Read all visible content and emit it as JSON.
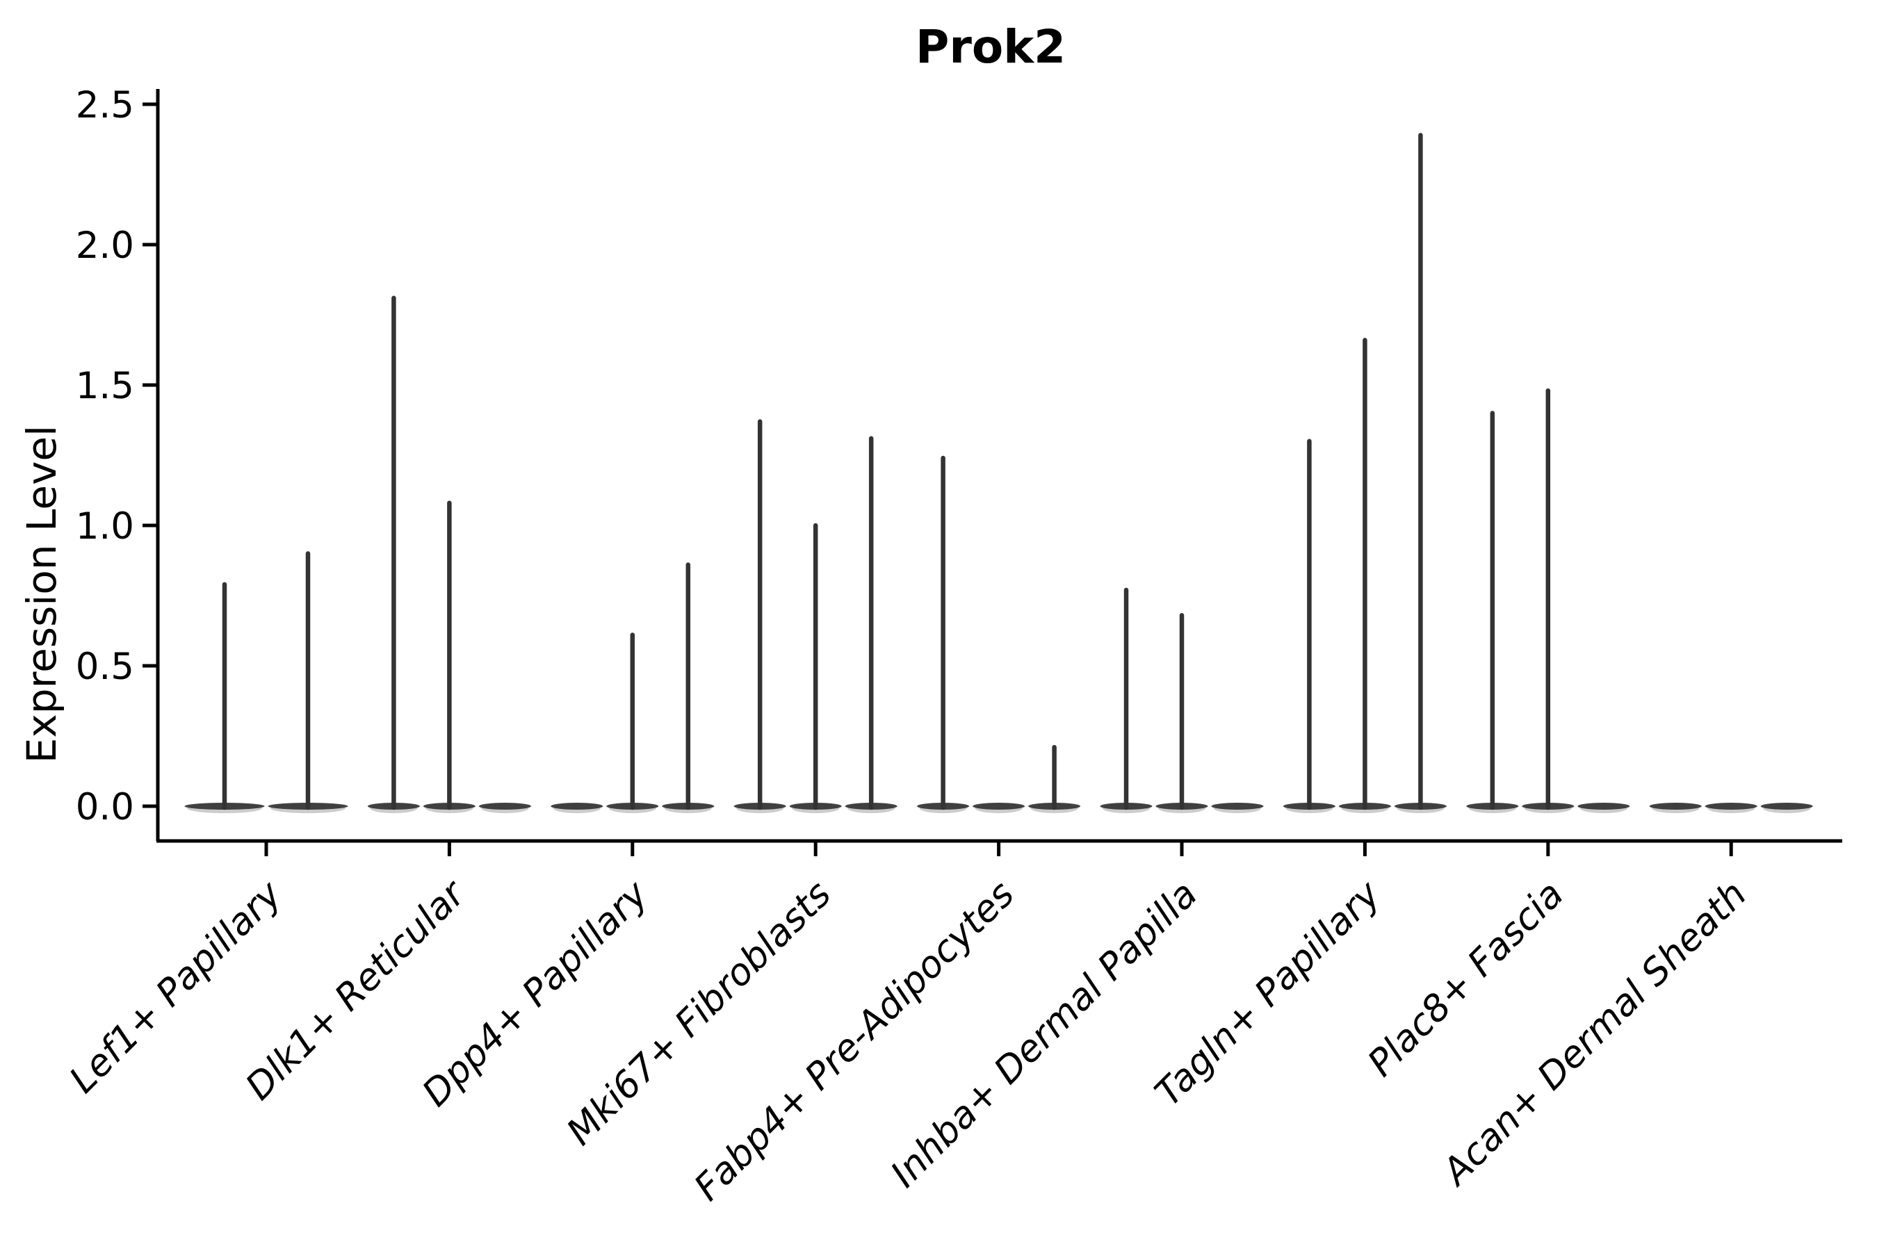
{
  "chart_data": {
    "type": "violin",
    "title": "Prok2",
    "xlabel": "",
    "ylabel": "Expression Level",
    "ylim": [
      0,
      2.5
    ],
    "yticks": [
      "0.0",
      "0.5",
      "1.0",
      "1.5",
      "2.0",
      "2.5"
    ],
    "grid": false,
    "legend_position": "none",
    "description": "Seurat-style violin plot of Prok2 expression; violins collapse to flat bases at 0 with thin spikes up to each group's maximum expression. Each category holds 2-3 sub-violins; 0 means a flat violin with no spike.",
    "categories": [
      "Lef1+ Papillary",
      "Dlk1+ Reticular",
      "Dpp4+ Papillary",
      "Mki67+ Fibroblasts",
      "Fabp4+ Pre-Adipocytes",
      "Inhba+ Dermal Papilla",
      "Tagln+ Papillary",
      "Plac8+ Fascia",
      "Acan+ Dermal Sheath"
    ],
    "groups": [
      {
        "category": "Lef1+ Papillary",
        "violin_maxima": [
          0.79,
          0.9
        ]
      },
      {
        "category": "Dlk1+ Reticular",
        "violin_maxima": [
          1.81,
          1.08,
          0
        ]
      },
      {
        "category": "Dpp4+ Papillary",
        "violin_maxima": [
          0,
          0.61,
          0.86
        ]
      },
      {
        "category": "Mki67+ Fibroblasts",
        "violin_maxima": [
          1.37,
          1.0,
          1.31
        ]
      },
      {
        "category": "Fabp4+ Pre-Adipocytes",
        "violin_maxima": [
          1.24,
          0,
          0.21
        ]
      },
      {
        "category": "Inhba+ Dermal Papilla",
        "violin_maxima": [
          0.77,
          0.68,
          0
        ]
      },
      {
        "category": "Tagln+ Papillary",
        "violin_maxima": [
          1.3,
          1.66,
          2.39
        ]
      },
      {
        "category": "Plac8+ Fascia",
        "violin_maxima": [
          1.4,
          1.48,
          0
        ]
      },
      {
        "category": "Acan+ Dermal Sheath",
        "violin_maxima": [
          0,
          0,
          0
        ]
      }
    ]
  },
  "style": {
    "background_color": "#ffffff",
    "violin_color": "#333333",
    "axis_color": "#000000",
    "text_color": "#000000"
  }
}
